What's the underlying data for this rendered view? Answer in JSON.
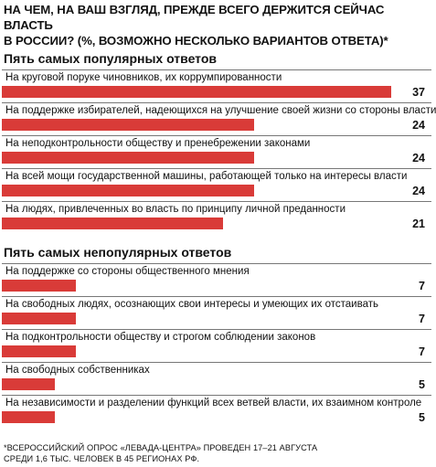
{
  "header": {
    "title_line1": "НА ЧЕМ, НА ВАШ ВЗГЛЯД, ПРЕЖДЕ ВСЕГО ДЕРЖИТСЯ СЕЙЧАС ВЛАСТЬ",
    "title_line2": "В РОССИИ? (%, ВОЗМОЖНО НЕСКОЛЬКО ВАРИАНТОВ ОТВЕТА)*"
  },
  "colors": {
    "bar": "#d93b38"
  },
  "chart_data": [
    {
      "type": "bar",
      "title": "Пять самых популярных ответов",
      "categories": [
        "На круговой поруке чиновников, их коррумпированности",
        "На поддержке избирателей, надеющихся на улучшение своей жизни со стороны власти",
        "На неподконтрольности обществу и пренебрежении законами",
        "На всей мощи государственной машины, работающей только на интересы власти",
        "На людях, привлеченных во власть по принципу личной преданности"
      ],
      "values": [
        37,
        24,
        24,
        24,
        21
      ],
      "value_labels": [
        "37",
        "24",
        "24",
        "24",
        "21"
      ]
    },
    {
      "type": "bar",
      "title": "Пять самых непопулярных ответов",
      "categories": [
        "На поддержке со стороны общественного мнения",
        "На свободных людях, осознающих свои интересы и умеющих их отстаивать",
        "На подконтрольности обществу и строгом соблюдении законов",
        "На свободных собственниках",
        "На независимости и разделении функций всех ветвей власти, их взаимном контроле"
      ],
      "values": [
        7,
        7,
        7,
        5,
        5
      ],
      "value_labels": [
        "7",
        "7",
        "7",
        "5",
        "5"
      ]
    }
  ],
  "footer": {
    "line1": "*ВСЕРОССИЙСКИЙ ОПРОС «ЛЕВАДА-ЦЕНТРА» ПРОВЕДЕН 17–21 АВГУСТА",
    "line2": "СРЕДИ 1,6 ТЫС. ЧЕЛОВЕК В 45 РЕГИОНАХ РФ."
  }
}
